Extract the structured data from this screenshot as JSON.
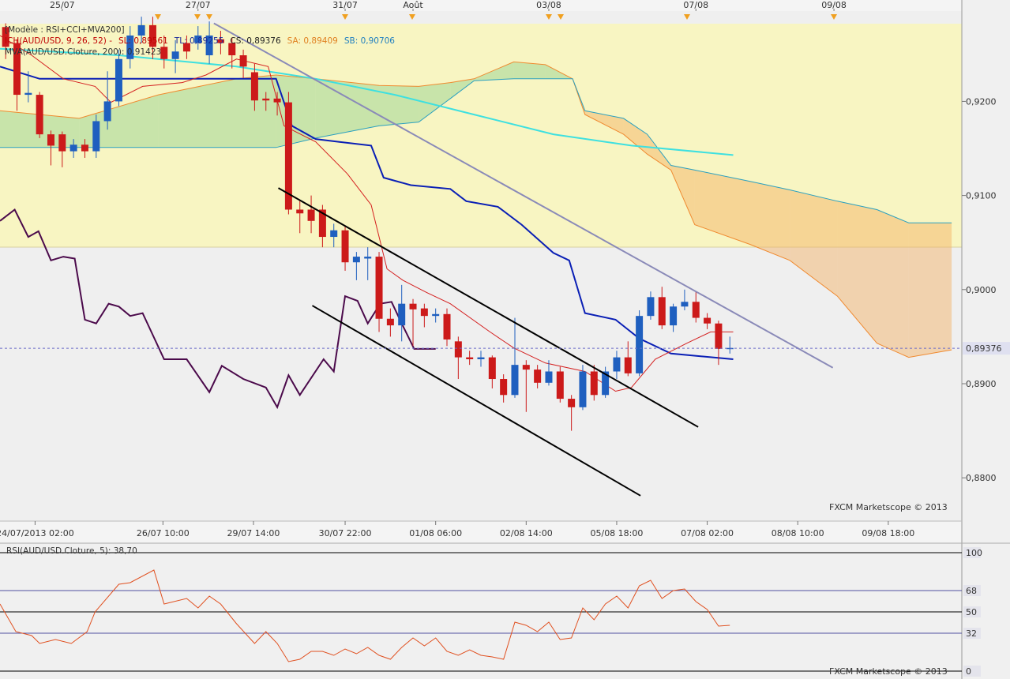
{
  "chart_data": [
    {
      "type": "candlestick",
      "model": "[Modèle : RSI+CCI+MVA200]",
      "indicator_legend": [
        {
          "text": "ICH(AUD/USD, 9, 26, 52)  -",
          "color": "#c00000"
        },
        {
          "text": "SL: 0,89561",
          "color": "#c00000"
        },
        {
          "text": "TL: 0,89255",
          "color": "#1a2a9a"
        },
        {
          "text": "CS: 0,89376",
          "color": "#202020"
        },
        {
          "text": "SA: 0,89409",
          "color": "#e08020"
        },
        {
          "text": "SB: 0,90706",
          "color": "#2080c0"
        }
      ],
      "ma_legend": {
        "text": "MVA(AUD/USD.Cloture, 200): 0,91423",
        "color": "#20c8c8"
      },
      "watermark": "FXCM Marketscope © 2013",
      "open": [
        0.9279,
        0.9262,
        0.9207,
        0.9207,
        0.9165,
        0.9165,
        0.9147,
        0.9154,
        0.9147,
        0.9179,
        0.92,
        0.9245,
        0.927,
        0.9281,
        0.9258,
        0.9245,
        0.9262,
        0.9262,
        0.9249,
        0.9266,
        0.9262,
        0.9249,
        0.9231,
        0.9203,
        0.9203,
        0.9199,
        0.9085,
        0.9085,
        0.9085,
        0.9056,
        0.9063,
        0.9029,
        0.9033,
        0.9035,
        0.8969,
        0.8962,
        0.8985,
        0.898,
        0.8972,
        0.8974,
        0.8945,
        0.8928,
        0.8926,
        0.8928,
        0.8905,
        0.8888,
        0.892,
        0.8915,
        0.8901,
        0.8913,
        0.8884,
        0.8875,
        0.8913,
        0.8888,
        0.8913,
        0.8928,
        0.8911,
        0.8972,
        0.8992,
        0.8962,
        0.8982,
        0.8987,
        0.897,
        0.8964,
        0.8937
      ],
      "high": [
        0.9283,
        0.9266,
        0.9232,
        0.921,
        0.9169,
        0.9168,
        0.916,
        0.916,
        0.9186,
        0.9232,
        0.9255,
        0.928,
        0.929,
        0.929,
        0.927,
        0.9265,
        0.927,
        0.928,
        0.9285,
        0.9275,
        0.9268,
        0.9255,
        0.924,
        0.921,
        0.921,
        0.921,
        0.9095,
        0.91,
        0.909,
        0.907,
        0.9068,
        0.904,
        0.9045,
        0.904,
        0.898,
        0.9005,
        0.899,
        0.8985,
        0.898,
        0.898,
        0.895,
        0.8935,
        0.8935,
        0.893,
        0.891,
        0.897,
        0.8925,
        0.892,
        0.8925,
        0.8918,
        0.8888,
        0.892,
        0.892,
        0.8918,
        0.8935,
        0.8945,
        0.8978,
        0.8998,
        0.9003,
        0.8985,
        0.9,
        0.8998,
        0.8975,
        0.8967,
        0.895
      ],
      "low": [
        0.9245,
        0.919,
        0.9199,
        0.9161,
        0.9132,
        0.913,
        0.914,
        0.914,
        0.914,
        0.917,
        0.9195,
        0.9235,
        0.9262,
        0.9245,
        0.9235,
        0.923,
        0.9245,
        0.9255,
        0.924,
        0.925,
        0.9235,
        0.9225,
        0.919,
        0.919,
        0.9185,
        0.908,
        0.906,
        0.906,
        0.9045,
        0.9045,
        0.902,
        0.901,
        0.901,
        0.8955,
        0.895,
        0.8945,
        0.894,
        0.896,
        0.8965,
        0.894,
        0.8905,
        0.892,
        0.8918,
        0.8895,
        0.888,
        0.8885,
        0.887,
        0.8895,
        0.8898,
        0.888,
        0.885,
        0.8872,
        0.8882,
        0.8885,
        0.8905,
        0.8908,
        0.8908,
        0.8968,
        0.8958,
        0.8955,
        0.8978,
        0.8965,
        0.8958,
        0.892,
        0.8932
      ],
      "close": [
        0.9258,
        0.9207,
        0.9209,
        0.9165,
        0.9153,
        0.9147,
        0.9154,
        0.9147,
        0.9179,
        0.92,
        0.9245,
        0.927,
        0.9281,
        0.9258,
        0.9245,
        0.9253,
        0.9253,
        0.927,
        0.927,
        0.9262,
        0.9249,
        0.9237,
        0.9201,
        0.9201,
        0.9199,
        0.9085,
        0.9081,
        0.9073,
        0.9056,
        0.9063,
        0.9029,
        0.9035,
        0.9035,
        0.8969,
        0.8962,
        0.8985,
        0.8979,
        0.8972,
        0.8974,
        0.8947,
        0.8928,
        0.8926,
        0.8928,
        0.8905,
        0.8888,
        0.892,
        0.8915,
        0.8901,
        0.8913,
        0.8884,
        0.8875,
        0.8913,
        0.8888,
        0.8913,
        0.8928,
        0.8911,
        0.8972,
        0.8992,
        0.8962,
        0.8982,
        0.8987,
        0.897,
        0.8964,
        0.8937,
        0.8938
      ],
      "up_color": "#1f5fbf",
      "down_color": "#cc1a1a",
      "cloud": {
        "x": [
          -0.5,
          6.5,
          13.5,
          20.4,
          23.9,
          27.4,
          33,
          36.5,
          39.3,
          41.4,
          44.9,
          47.7,
          50.1,
          51.2,
          54.6,
          56.7,
          58.8,
          60.9,
          65.8,
          69.3,
          73.5,
          77,
          79.8,
          83.6
        ],
        "span_a": [
          0.919,
          0.9182,
          0.9207,
          0.9224,
          0.9228,
          0.9224,
          0.9217,
          0.9216,
          0.922,
          0.9224,
          0.9242,
          0.9239,
          0.9224,
          0.9186,
          0.9165,
          0.9144,
          0.9127,
          0.9069,
          0.9048,
          0.9031,
          0.8993,
          0.8943,
          0.8928,
          0.8936
        ],
        "span_b": [
          0.9151,
          0.9151,
          0.9151,
          0.9151,
          0.9151,
          0.9161,
          0.9174,
          0.9178,
          0.9203,
          0.9222,
          0.9224,
          0.9224,
          0.9224,
          0.919,
          0.9182,
          0.9165,
          0.9132,
          0.9127,
          0.9115,
          0.9106,
          0.9094,
          0.9085,
          0.9071,
          0.9071
        ],
        "span_a_color": "#f08a30",
        "span_b_color": "#2aa0c0",
        "up_color": "#8fd08f",
        "down_color": "#f5b060"
      },
      "overlays": [
        {
          "color": "#3ee0e0",
          "width": 2,
          "x": [
            -0.5,
            10,
            20.4,
            27.4,
            34.4,
            41.4,
            48.4,
            55.3,
            64.3
          ],
          "values": [
            0.9256,
            0.9249,
            0.9237,
            0.9224,
            0.9207,
            0.9186,
            0.9165,
            0.9153,
            0.9143
          ]
        },
        {
          "color": "#0a1fb5",
          "width": 2,
          "x": [
            -0.5,
            3,
            23.9,
            25.3,
            27.4,
            29.5,
            32.3,
            33.4,
            35.8,
            39.3,
            40.7,
            43.5,
            45.6,
            48.4,
            49.8,
            51.2,
            53.9,
            56,
            58.8,
            64.3
          ],
          "values": [
            0.9237,
            0.9224,
            0.9224,
            0.9174,
            0.916,
            0.9157,
            0.9153,
            0.9119,
            0.9111,
            0.9107,
            0.9094,
            0.9088,
            0.9069,
            0.9039,
            0.9031,
            0.8975,
            0.8968,
            0.8948,
            0.8932,
            0.8926
          ]
        },
        {
          "color": "#d42020",
          "width": 1,
          "x": [
            -0.5,
            2.3,
            5.1,
            7.9,
            9.3,
            12.1,
            15.6,
            17.7,
            20.4,
            23.2,
            24.6,
            27.4,
            30.2,
            32.3,
            33.7,
            35.1,
            37.2,
            39.3,
            42.8,
            44.9,
            47.7,
            51.2,
            53.9,
            55.3,
            57.4,
            60.2,
            62.3,
            64.3
          ],
          "values": [
            0.927,
            0.9249,
            0.9224,
            0.9216,
            0.9199,
            0.9216,
            0.922,
            0.9228,
            0.9245,
            0.9237,
            0.9174,
            0.9157,
            0.9123,
            0.909,
            0.9022,
            0.901,
            0.8997,
            0.8985,
            0.8955,
            0.8938,
            0.8922,
            0.8913,
            0.8892,
            0.8896,
            0.8926,
            0.8943,
            0.8955,
            0.8955
          ]
        },
        {
          "color": "#4b0a4b",
          "width": 2,
          "x": [
            -0.5,
            0.8,
            2,
            2.9,
            4,
            5.1,
            6.1,
            7,
            8,
            9.1,
            10,
            11,
            12.1,
            14,
            16,
            18,
            19.1,
            21,
            23,
            24,
            25,
            26,
            28.1,
            29,
            30,
            31.1,
            32,
            33.1,
            34.1,
            35,
            36.1,
            37.1,
            38
          ],
          "values": [
            0.9073,
            0.9085,
            0.9056,
            0.9062,
            0.9031,
            0.9035,
            0.9033,
            0.8968,
            0.8964,
            0.8985,
            0.8982,
            0.8972,
            0.8975,
            0.8926,
            0.8926,
            0.8891,
            0.8919,
            0.8905,
            0.8896,
            0.8875,
            0.8909,
            0.8888,
            0.8926,
            0.8913,
            0.8993,
            0.8988,
            0.8964,
            0.8985,
            0.8987,
            0.8964,
            0.8937,
            0.8937,
            0.8937
          ]
        }
      ],
      "trendlines": [
        {
          "color": "#000000",
          "x": [
            24.1,
            61.2
          ],
          "values": [
            0.9108,
            0.8854
          ]
        },
        {
          "color": "#000000",
          "x": [
            27.1,
            56.1
          ],
          "values": [
            0.8983,
            0.8781
          ]
        },
        {
          "color": "#8a8ab8",
          "x": [
            18.4,
            73.1
          ],
          "values": [
            0.9283,
            0.8917
          ]
        }
      ],
      "current_price": {
        "value": 0.89376,
        "label": "0,89376",
        "color": "#6a6ac8"
      },
      "xlim": [
        -0.5,
        84.5
      ],
      "ylim": [
        0.8754,
        0.9296
      ],
      "yticks": [
        {
          "value": 0.92,
          "label": "0,9200"
        },
        {
          "value": 0.91,
          "label": "0,9100"
        },
        {
          "value": 0.9,
          "label": "0,9000"
        },
        {
          "value": 0.89,
          "label": "0,8900"
        },
        {
          "value": 0.88,
          "label": "0,8800"
        }
      ],
      "xticks": [
        {
          "value": 2.6,
          "label": "24/07/2013 02:00"
        },
        {
          "value": 13.9,
          "label": "26/07 10:00"
        },
        {
          "value": 21.9,
          "label": "29/07 14:00"
        },
        {
          "value": 30,
          "label": "30/07 22:00"
        },
        {
          "value": 38,
          "label": "01/08 06:00"
        },
        {
          "value": 46,
          "label": "02/08 14:00"
        },
        {
          "value": 54,
          "label": "05/08 18:00"
        },
        {
          "value": 62,
          "label": "07/08 02:00"
        },
        {
          "value": 70,
          "label": "08/08 10:00"
        },
        {
          "value": 78,
          "label": "09/08 18:00"
        }
      ],
      "top_ticks": [
        {
          "value": 5,
          "label": "25/07"
        },
        {
          "value": 17,
          "label": "27/07"
        },
        {
          "value": 30,
          "label": "31/07"
        },
        {
          "value": 36,
          "label": "Août"
        },
        {
          "value": 48,
          "label": "03/08"
        },
        {
          "value": 61,
          "label": "07/08"
        },
        {
          "value": 73.2,
          "label": "09/08"
        }
      ]
    },
    {
      "type": "line",
      "title": "RSI(AUD/USD.Cloture, 5): 38,70",
      "watermark": "FXCM Marketscope © 2013",
      "color": "#e05020",
      "x": [
        -0.5,
        0.9,
        2.3,
        3,
        4.4,
        5.8,
        7.2,
        7.9,
        10,
        11,
        13.1,
        14,
        16,
        17,
        18,
        19,
        20.4,
        22,
        23,
        24,
        25,
        26,
        27,
        28,
        29,
        30,
        31,
        32,
        33,
        34,
        35,
        36,
        37,
        38,
        39,
        40,
        41,
        42,
        43,
        44,
        45,
        46,
        47,
        48,
        49,
        50,
        51,
        52,
        53,
        54,
        55,
        56,
        57,
        58,
        59,
        60,
        61,
        62,
        63,
        64
      ],
      "values": [
        56.7,
        33.3,
        30,
        23.3,
        26.7,
        23.3,
        33.3,
        50,
        73.3,
        74.7,
        85.3,
        56.7,
        61.3,
        53.3,
        63.3,
        56.7,
        40,
        23.3,
        33.3,
        23.3,
        8,
        10,
        16.7,
        16.7,
        13.3,
        18.7,
        14.7,
        20,
        13.3,
        10,
        20,
        28,
        21.3,
        28,
        16.7,
        13.3,
        18,
        13.3,
        12,
        10,
        41.3,
        38.7,
        33.3,
        41.3,
        26.7,
        28,
        53.3,
        43.3,
        56.7,
        63.3,
        53.3,
        72,
        76.7,
        61.3,
        68,
        69.3,
        58.7,
        52,
        38,
        38.7
      ],
      "xlim": [
        -0.5,
        84.5
      ],
      "ylim": [
        0,
        100
      ],
      "yticks": [
        100,
        68,
        50,
        32,
        0
      ],
      "tick_colors": [
        "#000000",
        "#5050a0",
        "#000000",
        "#5050a0",
        "#000000"
      ]
    }
  ]
}
